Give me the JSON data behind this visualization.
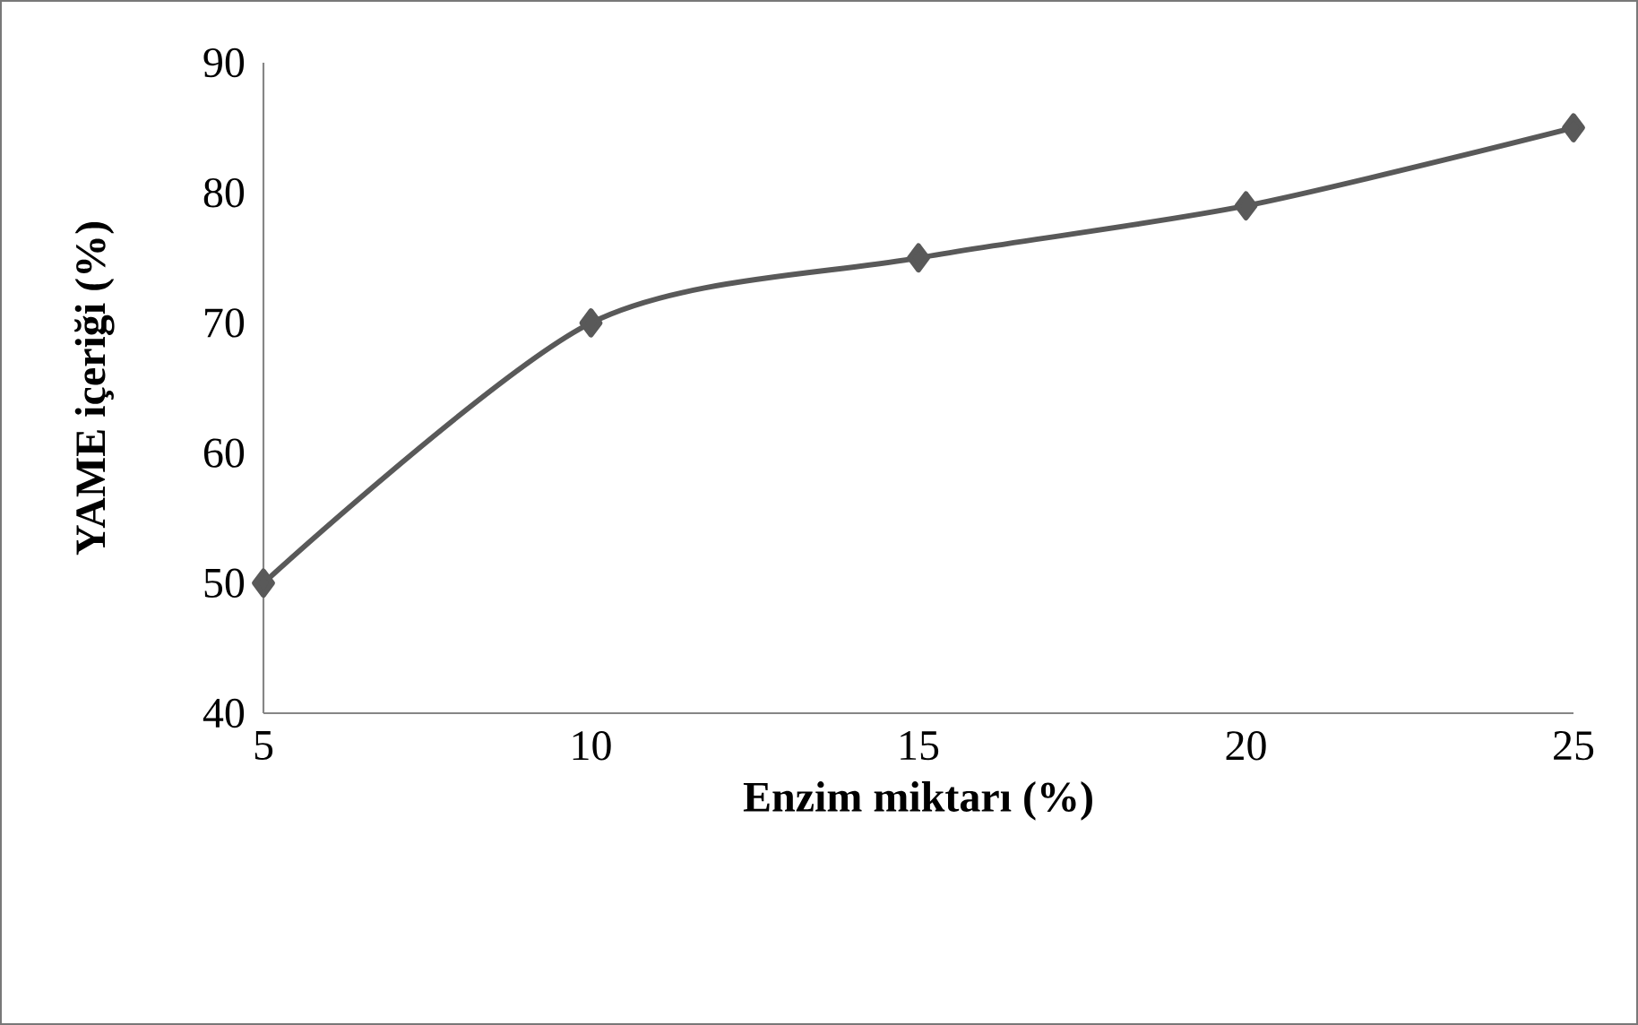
{
  "chart_data": {
    "type": "line",
    "xlabel": "Enzim miktarı (%)",
    "ylabel": "YAME içeriği (%)",
    "x": [
      5,
      10,
      15,
      20,
      25
    ],
    "series": [
      {
        "color": "#595959",
        "values": [
          50,
          70,
          75,
          79,
          85
        ]
      }
    ],
    "xlim": [
      5,
      25
    ],
    "xticks": [
      5,
      10,
      15,
      20,
      25
    ],
    "ylim": [
      40,
      90
    ],
    "yticks": [
      40,
      50,
      60,
      70,
      80,
      90
    ],
    "grid": false,
    "marker": "diamond",
    "line_style": "solid"
  }
}
